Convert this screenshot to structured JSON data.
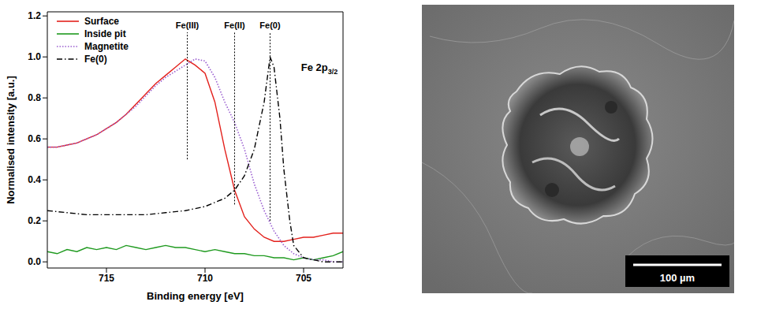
{
  "chart_data": {
    "type": "line",
    "x_label": "Binding energy [eV]",
    "y_label": "Normalised intensity [a.u.]",
    "xlim": [
      718,
      703
    ],
    "xticks": [
      715,
      710,
      705
    ],
    "ylim": [
      -0.03,
      1.22
    ],
    "yticks": [
      {
        "value": 0,
        "label": "0.0"
      },
      0.2,
      0.4,
      0.6,
      0.8,
      {
        "value": 1,
        "label": "1.0"
      },
      1.2
    ],
    "grid": false,
    "legend": "upper left",
    "series": [
      {
        "name": "Surface",
        "color": "#e3211c",
        "line_style": "solid",
        "marker": "none",
        "x": [
          718,
          717.5,
          717,
          716.5,
          716,
          715.5,
          715,
          714.5,
          714,
          713.5,
          713,
          712.5,
          712,
          711.5,
          711,
          710.5,
          710,
          709.5,
          709,
          708.5,
          708,
          707.5,
          707,
          706.5,
          706,
          705.5,
          705,
          704.5,
          704,
          703.5,
          703
        ],
        "values": [
          0.56,
          0.56,
          0.57,
          0.58,
          0.6,
          0.62,
          0.65,
          0.68,
          0.72,
          0.77,
          0.82,
          0.87,
          0.91,
          0.95,
          0.99,
          0.96,
          0.92,
          0.78,
          0.55,
          0.35,
          0.22,
          0.16,
          0.12,
          0.1,
          0.1,
          0.11,
          0.12,
          0.12,
          0.13,
          0.14,
          0.14
        ]
      },
      {
        "name": "Inside pit",
        "color": "#1f9a1f",
        "line_style": "solid",
        "marker": "none",
        "x": [
          718,
          717.5,
          717,
          716.5,
          716,
          715.5,
          715,
          714.5,
          714,
          713.5,
          713,
          712.5,
          712,
          711.5,
          711,
          710.5,
          710,
          709.5,
          709,
          708.5,
          708,
          707.5,
          707,
          706.5,
          706,
          705.5,
          705,
          704.5,
          704,
          703.5,
          703
        ],
        "values": [
          0.05,
          0.04,
          0.06,
          0.05,
          0.07,
          0.06,
          0.07,
          0.06,
          0.08,
          0.07,
          0.06,
          0.07,
          0.08,
          0.07,
          0.07,
          0.06,
          0.05,
          0.06,
          0.05,
          0.04,
          0.04,
          0.03,
          0.03,
          0.02,
          0.02,
          0.01,
          0.02,
          0.01,
          0.02,
          0.03,
          0.05
        ]
      },
      {
        "name": "Magnetite",
        "color": "#9a5fd0",
        "line_style": "dotted",
        "marker": "none",
        "x": [
          718,
          717.5,
          717,
          716.5,
          716,
          715.5,
          715,
          714.5,
          714,
          713.5,
          713,
          712.5,
          712,
          711.5,
          711,
          710.5,
          710,
          709.5,
          709,
          708.5,
          708,
          707.5,
          707,
          706.5,
          706,
          705.5,
          705,
          704.5,
          704,
          703.5,
          703
        ],
        "values": [
          0.56,
          0.56,
          0.57,
          0.58,
          0.6,
          0.62,
          0.65,
          0.68,
          0.72,
          0.76,
          0.81,
          0.86,
          0.9,
          0.93,
          0.96,
          0.99,
          0.98,
          0.9,
          0.78,
          0.68,
          0.55,
          0.38,
          0.25,
          0.15,
          0.08,
          0.04,
          0.02,
          0.01,
          0.01,
          0,
          0
        ]
      },
      {
        "name": "Fe(0)",
        "color": "#000000",
        "line_style": "dashdot",
        "marker": "none",
        "x": [
          718,
          717,
          716,
          715,
          714,
          713,
          712,
          711,
          710.5,
          710,
          709.5,
          709,
          708.5,
          708,
          707.5,
          707,
          706.7,
          706.5,
          706.2,
          706,
          705.7,
          705.5,
          705,
          704.5,
          704,
          703.5,
          703
        ],
        "values": [
          0.25,
          0.24,
          0.23,
          0.23,
          0.23,
          0.23,
          0.24,
          0.25,
          0.26,
          0.27,
          0.29,
          0.31,
          0.35,
          0.42,
          0.55,
          0.78,
          1.0,
          0.95,
          0.7,
          0.45,
          0.2,
          0.08,
          0.02,
          0.01,
          0,
          0,
          0
        ]
      }
    ],
    "reference_lines": [
      {
        "label": "Fe(III)",
        "x": 710.9,
        "y": [
          0.5,
          1.12
        ]
      },
      {
        "label": "Fe(II)",
        "x": 708.5,
        "y": [
          0.28,
          1.12
        ]
      },
      {
        "label": "Fe(0)",
        "x": 706.7,
        "y": [
          0.2,
          1.12
        ]
      }
    ],
    "annotations": [
      {
        "text": "Fe 2p",
        "subscript": "3/2",
        "x": 704.2,
        "y": 0.93
      }
    ]
  },
  "image": {
    "scale_bar": "100 µm"
  }
}
